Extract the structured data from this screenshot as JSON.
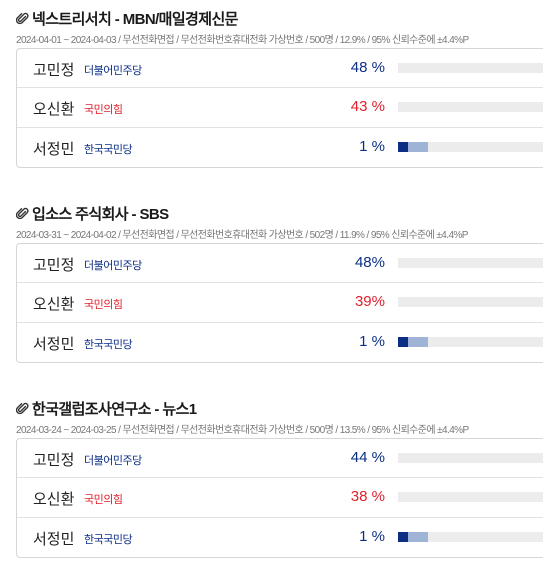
{
  "colors": {
    "democratic": "#0c2f85",
    "people_power": "#e0202c",
    "rebuilding_korea": "#0c2f85",
    "bar_track": "#ececec"
  },
  "polls": [
    {
      "title": "넥스트리서치 - MBN/매일경제신문",
      "meta": "2024-04-01 ~ 2024-04-03 / 무선전화면접 / 무선전화번호휴대전화 가상번호 / 500명 / 12.9% / 95% 신뢰수준에 ±4.4%P",
      "rows": [
        {
          "name": "고민정",
          "party": "더불어민주당",
          "pct_label": "48 %",
          "share": 0.48
        },
        {
          "name": "오신환",
          "party": "국민의힘",
          "pct_label": "43 %",
          "share": 0.43
        },
        {
          "name": "서정민",
          "party": "한국국민당",
          "pct_label": "1 %",
          "share": 0.01
        }
      ]
    },
    {
      "title": "입소스 주식회사 - SBS",
      "meta": "2024-03-31 ~ 2024-04-02 / 무선전화면접 / 무선전화번호휴대전화 가상번호 / 502명 / 11.9% / 95% 신뢰수준에 ±4.4%P",
      "rows": [
        {
          "name": "고민정",
          "party": "더불어민주당",
          "pct_label": "48%",
          "share": 0.48
        },
        {
          "name": "오신환",
          "party": "국민의힘",
          "pct_label": "39%",
          "share": 0.39
        },
        {
          "name": "서정민",
          "party": "한국국민당",
          "pct_label": "1 %",
          "share": 0.01
        }
      ]
    },
    {
      "title": "한국갤럽조사연구소 - 뉴스1",
      "meta": "2024-03-24 ~ 2024-03-25 / 무선전화면접 / 무선전화번호휴대전화 가상번호 / 500명 / 13.5% / 95% 신뢰수준에 ±4.4%P",
      "rows": [
        {
          "name": "고민정",
          "party": "더불어민주당",
          "pct_label": "44 %",
          "share": 0.44
        },
        {
          "name": "오신환",
          "party": "국민의힘",
          "pct_label": "38 %",
          "share": 0.38
        },
        {
          "name": "서정민",
          "party": "한국국민당",
          "pct_label": "1 %",
          "share": 0.01
        }
      ]
    }
  ]
}
